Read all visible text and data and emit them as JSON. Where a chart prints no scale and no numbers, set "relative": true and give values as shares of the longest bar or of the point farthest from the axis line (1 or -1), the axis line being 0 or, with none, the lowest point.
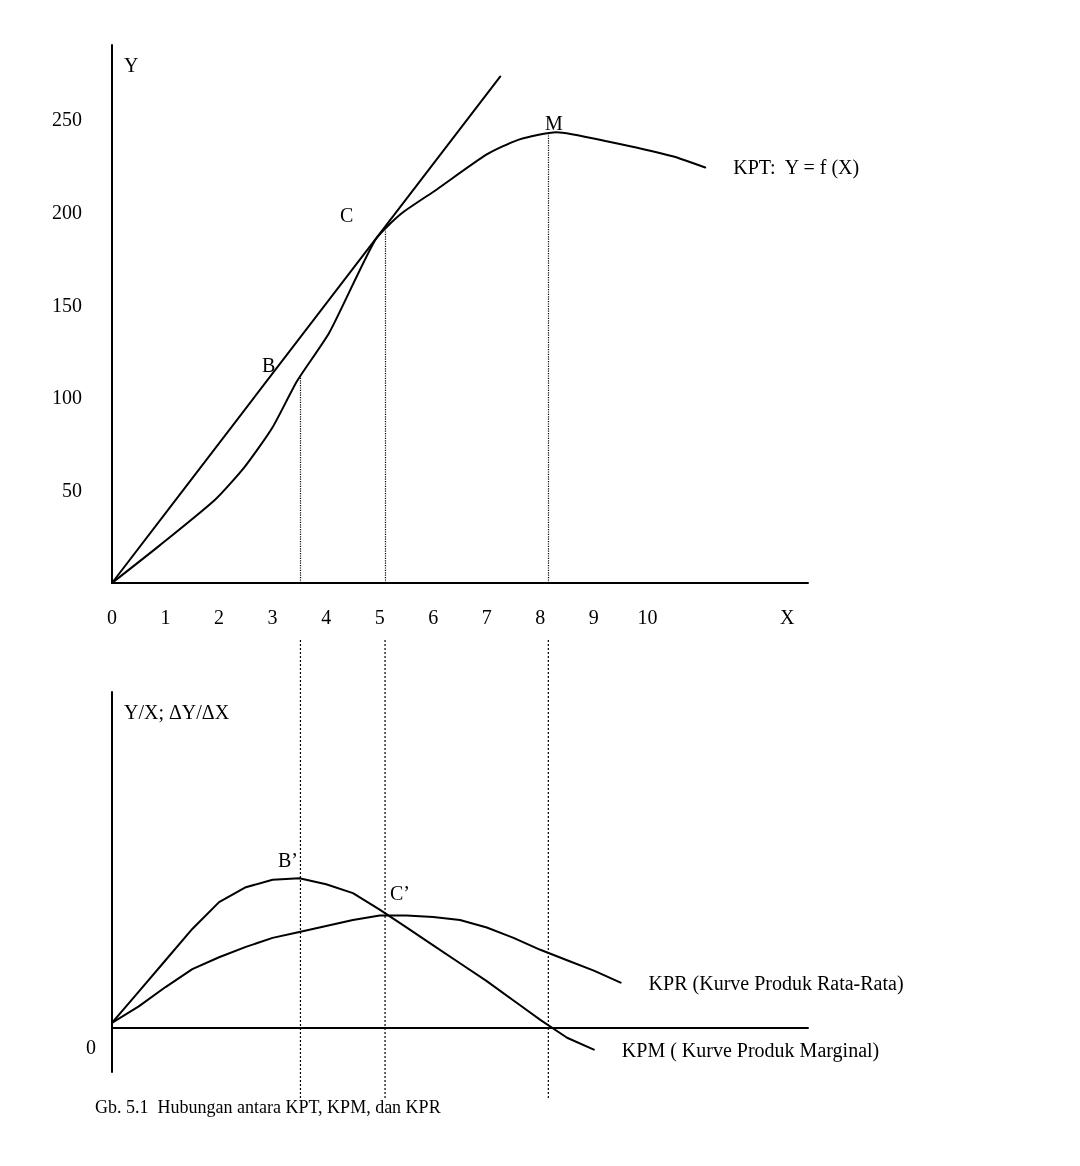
{
  "chart_data": [
    {
      "type": "line",
      "xlabel": "X",
      "ylabel": "Y",
      "xlim": [
        0,
        13
      ],
      "ylim": [
        0,
        290
      ],
      "xticks": [
        0,
        1,
        2,
        3,
        4,
        5,
        6,
        7,
        8,
        9,
        10
      ],
      "yticks": [
        50,
        100,
        150,
        200,
        250
      ],
      "marker": "none",
      "line_style": "solid",
      "series": [
        {
          "name": "KPT:  Y = f (X)",
          "color": "#000000",
          "x": [
            0,
            0.88,
            1.93,
            2.49,
            3.0,
            3.46,
            4.06,
            4.92,
            5.4,
            6.06,
            7.0,
            7.6,
            8.3,
            9.26,
            10.47,
            11.08
          ],
          "values": [
            0,
            20,
            45,
            63,
            84,
            109,
            135,
            185,
            199,
            212,
            231,
            239,
            243,
            238,
            230,
            224
          ]
        },
        {
          "color": "#000000",
          "x": [
            0,
            7.25
          ],
          "values": [
            0,
            273
          ]
        }
      ],
      "ref_lines": [
        {
          "axis": "x",
          "value": 3.52,
          "line_style": "dotted"
        },
        {
          "axis": "x",
          "value": 5.1,
          "line_style": "dotted"
        },
        {
          "axis": "x",
          "value": 8.15,
          "line_style": "dotted"
        }
      ],
      "annotations": [
        "B",
        "C",
        "M"
      ]
    },
    {
      "type": "line",
      "relative": true,
      "ylabel": "Y/X; ΔY/ΔX",
      "marker": "none",
      "line_style": "solid",
      "categories": [
        null,
        null,
        null,
        null,
        null,
        null,
        null,
        null,
        null,
        null,
        null,
        null,
        null,
        null,
        null,
        null,
        null,
        null,
        null,
        null,
        null,
        null,
        null,
        null,
        null,
        null,
        null
      ],
      "series": [
        {
          "name": "KPM ( Kurve Produk Marginal)",
          "color": "#000000",
          "values": [
            0.03,
            0.24,
            0.45,
            0.66,
            0.84,
            0.94,
            0.99,
            1,
            0.96,
            0.9,
            0.79,
            0.67,
            0.55,
            0.43,
            0.31,
            0.18,
            0.05,
            -0.07,
            -0.15,
            null,
            null,
            null,
            null,
            null,
            null,
            null,
            null
          ]
        },
        {
          "name": "KPR (Kurve Produk Rata-Rata)",
          "color": "#000000",
          "values": [
            0.03,
            0.14,
            0.27,
            0.39,
            0.47,
            0.54,
            0.6,
            0.64,
            0.68,
            0.72,
            0.75,
            0.75,
            0.74,
            0.72,
            0.67,
            0.6,
            0.52,
            0.45,
            0.38,
            0.3,
            null,
            null,
            null,
            null,
            null,
            null,
            null
          ]
        }
      ],
      "annotations": [
        "B’",
        "C’",
        "0",
        "Gb. 5.1  Hubungan antara KPT, KPM, dan KPR"
      ]
    }
  ]
}
